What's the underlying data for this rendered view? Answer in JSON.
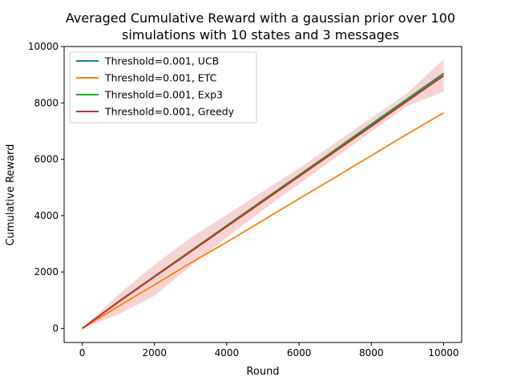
{
  "chart_data": {
    "type": "line",
    "title_lines": [
      "Averaged Cumulative Reward with a gaussian prior over 100",
      "simulations with 10 states and 3 messages"
    ],
    "xlabel": "Round",
    "ylabel": "Cumulative Reward",
    "xlim": [
      -500,
      10500
    ],
    "ylim": [
      -500,
      10000
    ],
    "xticks": [
      0,
      2000,
      4000,
      6000,
      8000,
      10000
    ],
    "yticks": [
      0,
      2000,
      4000,
      6000,
      8000,
      10000
    ],
    "grid": false,
    "legend_position": "upper-left",
    "x": [
      0,
      1000,
      2000,
      3000,
      4000,
      5000,
      6000,
      7000,
      8000,
      9000,
      10000
    ],
    "series": [
      {
        "name": "Threshold=0.001, UCB",
        "color": "#1f77b4",
        "values": [
          0,
          940,
          1840,
          2740,
          3630,
          4530,
          5420,
          6320,
          7220,
          8130,
          9030
        ]
      },
      {
        "name": "Threshold=0.001, ETC",
        "color": "#ff7f0e",
        "values": [
          0,
          780,
          1550,
          2320,
          3060,
          3830,
          4600,
          5360,
          6130,
          6900,
          7650
        ]
      },
      {
        "name": "Threshold=0.001, Exp3",
        "color": "#2ca02c",
        "values": [
          0,
          950,
          1850,
          2750,
          3650,
          4550,
          5440,
          6340,
          7250,
          8150,
          9050
        ]
      },
      {
        "name": "Threshold=0.001, Greedy",
        "color": "#d62728",
        "values": [
          0,
          930,
          1830,
          2720,
          3610,
          4500,
          5390,
          6280,
          7170,
          8070,
          8960
        ]
      }
    ],
    "band": {
      "series": "Threshold=0.001, Greedy",
      "color": "#d62728",
      "opacity": 0.2,
      "lower": [
        0,
        500,
        1150,
        2220,
        3220,
        4200,
        5120,
        6050,
        6980,
        7890,
        8400
      ],
      "upper": [
        0,
        1200,
        2260,
        3220,
        4030,
        4860,
        5680,
        6580,
        7470,
        8350,
        9550
      ]
    }
  }
}
